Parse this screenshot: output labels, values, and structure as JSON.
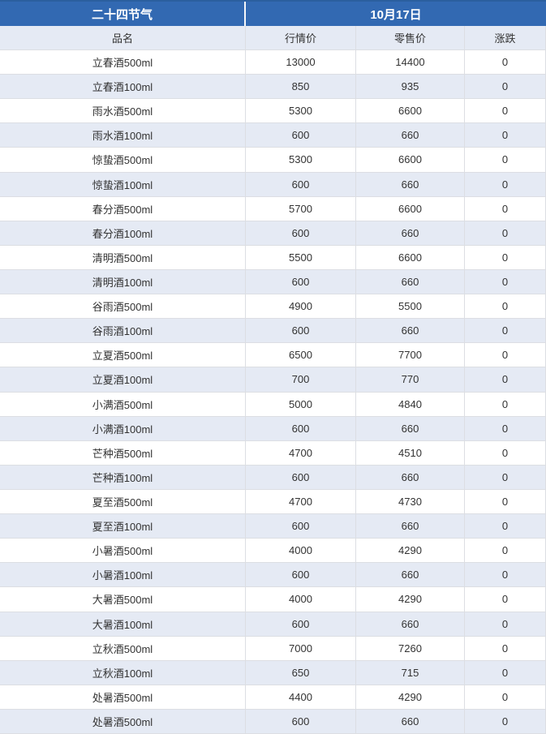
{
  "table": {
    "title_left": "二十四节气",
    "title_right": "10月17日",
    "columns": [
      "品名",
      "行情价",
      "零售价",
      "涨跌"
    ],
    "rows": [
      {
        "name": "立春酒500ml",
        "market": "13000",
        "retail": "14400",
        "change": "0"
      },
      {
        "name": "立春酒100ml",
        "market": "850",
        "retail": "935",
        "change": "0"
      },
      {
        "name": "雨水酒500ml",
        "market": "5300",
        "retail": "6600",
        "change": "0"
      },
      {
        "name": "雨水酒100ml",
        "market": "600",
        "retail": "660",
        "change": "0"
      },
      {
        "name": "惊蛰酒500ml",
        "market": "5300",
        "retail": "6600",
        "change": "0"
      },
      {
        "name": "惊蛰酒100ml",
        "market": "600",
        "retail": "660",
        "change": "0"
      },
      {
        "name": "春分酒500ml",
        "market": "5700",
        "retail": "6600",
        "change": "0"
      },
      {
        "name": "春分酒100ml",
        "market": "600",
        "retail": "660",
        "change": "0"
      },
      {
        "name": "清明酒500ml",
        "market": "5500",
        "retail": "6600",
        "change": "0"
      },
      {
        "name": "清明酒100ml",
        "market": "600",
        "retail": "660",
        "change": "0"
      },
      {
        "name": "谷雨酒500ml",
        "market": "4900",
        "retail": "5500",
        "change": "0"
      },
      {
        "name": "谷雨酒100ml",
        "market": "600",
        "retail": "660",
        "change": "0"
      },
      {
        "name": "立夏酒500ml",
        "market": "6500",
        "retail": "7700",
        "change": "0"
      },
      {
        "name": "立夏酒100ml",
        "market": "700",
        "retail": "770",
        "change": "0"
      },
      {
        "name": "小满酒500ml",
        "market": "5000",
        "retail": "4840",
        "change": "0"
      },
      {
        "name": "小满酒100ml",
        "market": "600",
        "retail": "660",
        "change": "0"
      },
      {
        "name": "芒种酒500ml",
        "market": "4700",
        "retail": "4510",
        "change": "0"
      },
      {
        "name": "芒种酒100ml",
        "market": "600",
        "retail": "660",
        "change": "0"
      },
      {
        "name": "夏至酒500ml",
        "market": "4700",
        "retail": "4730",
        "change": "0"
      },
      {
        "name": "夏至酒100ml",
        "market": "600",
        "retail": "660",
        "change": "0"
      },
      {
        "name": "小暑酒500ml",
        "market": "4000",
        "retail": "4290",
        "change": "0"
      },
      {
        "name": "小暑酒100ml",
        "market": "600",
        "retail": "660",
        "change": "0"
      },
      {
        "name": "大暑酒500ml",
        "market": "4000",
        "retail": "4290",
        "change": "0"
      },
      {
        "name": "大暑酒100ml",
        "market": "600",
        "retail": "660",
        "change": "0"
      },
      {
        "name": "立秋酒500ml",
        "market": "7000",
        "retail": "7260",
        "change": "0"
      },
      {
        "name": "立秋酒100ml",
        "market": "650",
        "retail": "715",
        "change": "0"
      },
      {
        "name": "处暑酒500ml",
        "market": "4400",
        "retail": "4290",
        "change": "0"
      },
      {
        "name": "处暑酒500ml",
        "market": "600",
        "retail": "660",
        "change": "0"
      }
    ]
  },
  "colors": {
    "header_bg": "#3269b2",
    "header_top_edge": "#2b5f9f",
    "header_text": "#ffffff",
    "stripe_bg": "#e5eaf4",
    "row_bg": "#ffffff",
    "border": "#dcdee3",
    "text": "#333333"
  }
}
